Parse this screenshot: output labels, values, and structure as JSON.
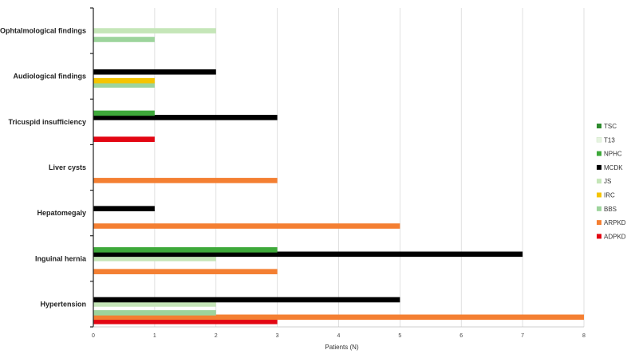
{
  "chart_data": {
    "type": "bar",
    "orientation": "horizontal",
    "title": "",
    "xlabel": "Patients (N)",
    "ylabel": "",
    "xlim": [
      0,
      8
    ],
    "xticks": [
      0,
      1,
      2,
      3,
      4,
      5,
      6,
      7,
      8
    ],
    "grid": "vertical",
    "legend_position": "right",
    "categories": [
      "Ophtalmological findings",
      "Audiological findings",
      "Tricuspid insufficiency",
      "Liver cysts",
      "Hepatomegaly",
      "Inguinal hernia",
      "Hypertension"
    ],
    "series": [
      {
        "name": "ADPKD",
        "color": "#e30613",
        "values": [
          0,
          0,
          1,
          0,
          0,
          0,
          3
        ]
      },
      {
        "name": "ARPKD",
        "color": "#f47f32",
        "values": [
          0,
          0,
          0,
          3,
          5,
          3,
          8
        ]
      },
      {
        "name": "BBS",
        "color": "#9dd49c",
        "values": [
          1,
          1,
          0,
          0,
          0,
          0,
          2
        ]
      },
      {
        "name": "IRC",
        "color": "#f5c400",
        "values": [
          0,
          1,
          0,
          0,
          0,
          0,
          0
        ]
      },
      {
        "name": "JS",
        "color": "#c5e6b8",
        "values": [
          2,
          0,
          0,
          0,
          0,
          2,
          2
        ]
      },
      {
        "name": "MCDK",
        "color": "#000000",
        "values": [
          0,
          2,
          3,
          0,
          1,
          7,
          5
        ]
      },
      {
        "name": "NPHC",
        "color": "#3ea93a",
        "values": [
          0,
          0,
          1,
          0,
          0,
          3,
          0
        ]
      },
      {
        "name": "T13",
        "color": "#e6f4e0",
        "values": [
          0,
          0,
          0,
          0,
          0,
          0,
          0
        ]
      },
      {
        "name": "TSC",
        "color": "#2e8b2e",
        "values": [
          0,
          0,
          0,
          0,
          0,
          0,
          0
        ]
      }
    ]
  }
}
